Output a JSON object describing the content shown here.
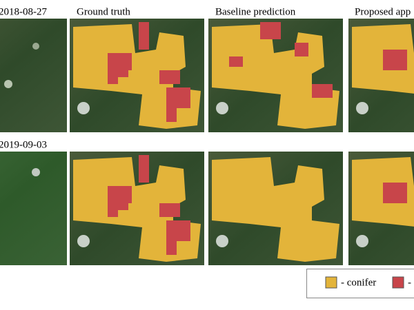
{
  "figure": {
    "column_titles": [
      "Ground truth",
      "Baseline prediction",
      "Proposed app"
    ],
    "row_labels": [
      "2018-08-27",
      "2019-09-03"
    ],
    "legend": {
      "items": [
        "- conifer",
        "-"
      ]
    }
  }
}
